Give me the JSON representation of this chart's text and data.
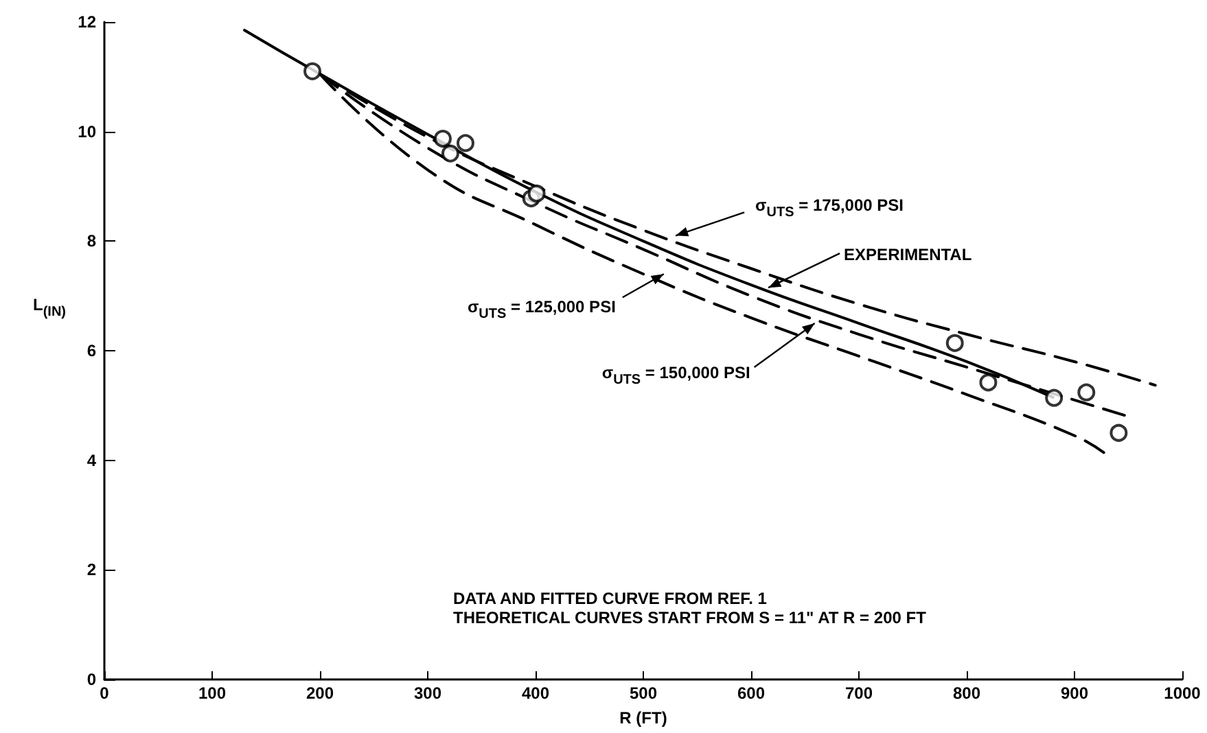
{
  "chart_data": {
    "type": "scatter",
    "xlabel": "R (FT)",
    "ylabel": "L$_{(IN)}$",
    "xlim": [
      0,
      1000
    ],
    "xticks": [
      0,
      100,
      200,
      300,
      400,
      500,
      600,
      700,
      800,
      900,
      1000
    ],
    "ylim": [
      0,
      12
    ],
    "yticks": [
      0,
      2,
      4,
      6,
      8,
      10,
      12
    ],
    "grid": false,
    "series": [
      {
        "marker": "circle",
        "color": "#000000",
        "x": [
          193,
          314,
          321,
          335,
          396,
          401,
          789,
          820,
          881,
          911,
          941
        ],
        "values": [
          11.1,
          9.87,
          9.6,
          9.79,
          8.78,
          8.87,
          6.14,
          5.42,
          5.14,
          5.24,
          4.5
        ]
      },
      {
        "type": "line",
        "line_style": "solid",
        "color": "#000000",
        "x": [
          130,
          200,
          300,
          400,
          500,
          600,
          700,
          800,
          880
        ],
        "values": [
          11.85,
          11.05,
          9.95,
          8.9,
          8.0,
          7.2,
          6.5,
          5.8,
          5.15
        ]
      },
      {
        "type": "line",
        "line_style": "dashed",
        "color": "#000000",
        "x": [
          200,
          300,
          400,
          500,
          600,
          700,
          800,
          900,
          975
        ],
        "values": [
          11.05,
          9.9,
          9.0,
          8.2,
          7.5,
          6.85,
          6.3,
          5.8,
          5.37
        ]
      },
      {
        "type": "line",
        "line_style": "dashed",
        "color": "#000000",
        "x": [
          200,
          300,
          400,
          500,
          600,
          700,
          800,
          900,
          950
        ],
        "values": [
          11.05,
          9.7,
          8.7,
          7.85,
          7.0,
          6.3,
          5.7,
          5.1,
          4.8
        ]
      },
      {
        "type": "line",
        "line_style": "dashed",
        "color": "#000000",
        "x": [
          200,
          300,
          400,
          500,
          600,
          700,
          800,
          900,
          930
        ],
        "values": [
          11.05,
          9.3,
          8.3,
          7.4,
          6.6,
          5.9,
          5.2,
          4.45,
          4.1
        ]
      }
    ],
    "annotations": [
      {
        "text": "σ$_{UTS}$ = 175,000 PSI",
        "x": 530,
        "y": 8.1
      },
      {
        "text": "EXPERIMENTAL",
        "x": 616,
        "y": 7.15
      },
      {
        "text": "σ$_{UTS}$ = 125,000 PSI",
        "x": 519,
        "y": 7.4
      },
      {
        "text": "σ$_{UTS}$ = 150,000 PSI",
        "x": 659,
        "y": 6.5
      },
      "DATA AND FITTED CURVE FROM REF. 1",
      "THEORETICAL CURVES START FROM S = 11\" AT R = 200 FT"
    ]
  }
}
